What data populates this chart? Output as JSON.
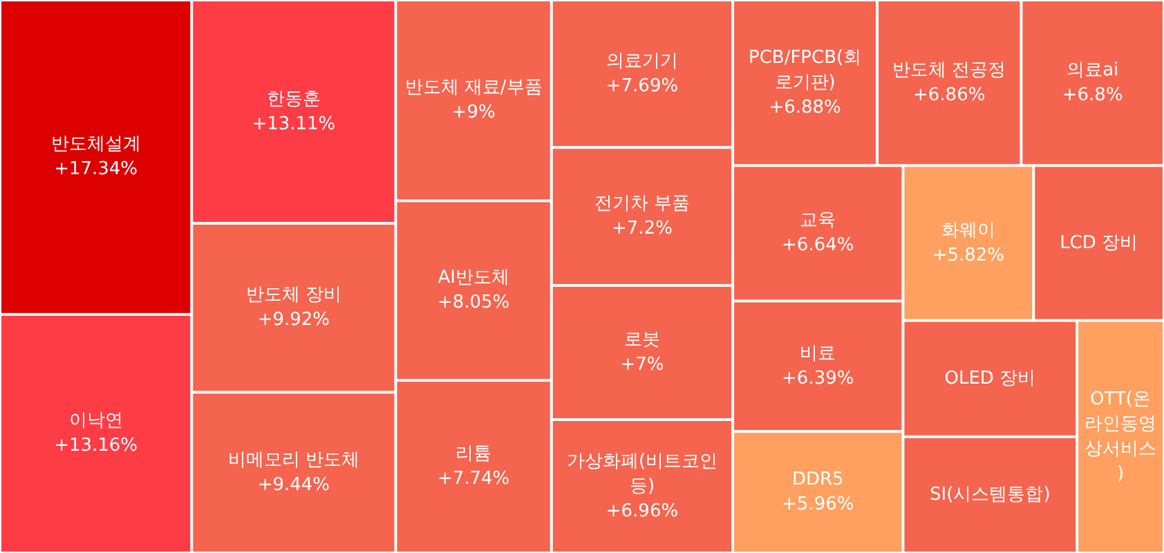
{
  "chart_data": {
    "type": "other",
    "categories": [
      "반도체설계",
      "이낙연",
      "한동훈",
      "반도체 장비",
      "비메모리 반도체",
      "반도체 재료/부품",
      "AI반도체",
      "리튬",
      "의료기기",
      "전기차 부품",
      "로봇",
      "가상화폐(비트코인 등)",
      "PCB/FPCB(회로기판)",
      "반도체 전공정",
      "의료ai",
      "교육",
      "비료",
      "DDR5",
      "화웨이",
      "LCD 장비",
      "OLED 장비",
      "SI(시스템통합)",
      "OTT(온라인동영상서비스)"
    ],
    "values": [
      17.34,
      13.16,
      13.11,
      9.92,
      9.44,
      9,
      8.05,
      7.74,
      7.69,
      7.2,
      7,
      6.96,
      6.88,
      6.86,
      6.8,
      6.64,
      6.39,
      5.96,
      5.82,
      null,
      null,
      null,
      null
    ],
    "value_labels": [
      "+17.34%",
      "+13.16%",
      "+13.11%",
      "+9.92%",
      "+9.44%",
      "+9%",
      "+8.05%",
      "+7.74%",
      "+7.69%",
      "+7.2%",
      "+7%",
      "+6.96%",
      "+6.88%",
      "+6.86%",
      "+6.8%",
      "+6.64%",
      "+6.39%",
      "+5.96%",
      "+5.82%",
      null,
      null,
      null,
      null
    ],
    "colors": [
      "#dd0000",
      "#fd3c46",
      "#fd3c46",
      "#f4644e",
      "#f4644e",
      "#f4644e",
      "#f4644e",
      "#f4644e",
      "#f4644e",
      "#f4644e",
      "#f4644e",
      "#f4644e",
      "#f4644e",
      "#f4644e",
      "#f4644e",
      "#f4644e",
      "#f4644e",
      "#ffa060",
      "#ffa060",
      "#f4644e",
      "#f4644e",
      "#f4644e",
      "#ffa060"
    ]
  }
}
